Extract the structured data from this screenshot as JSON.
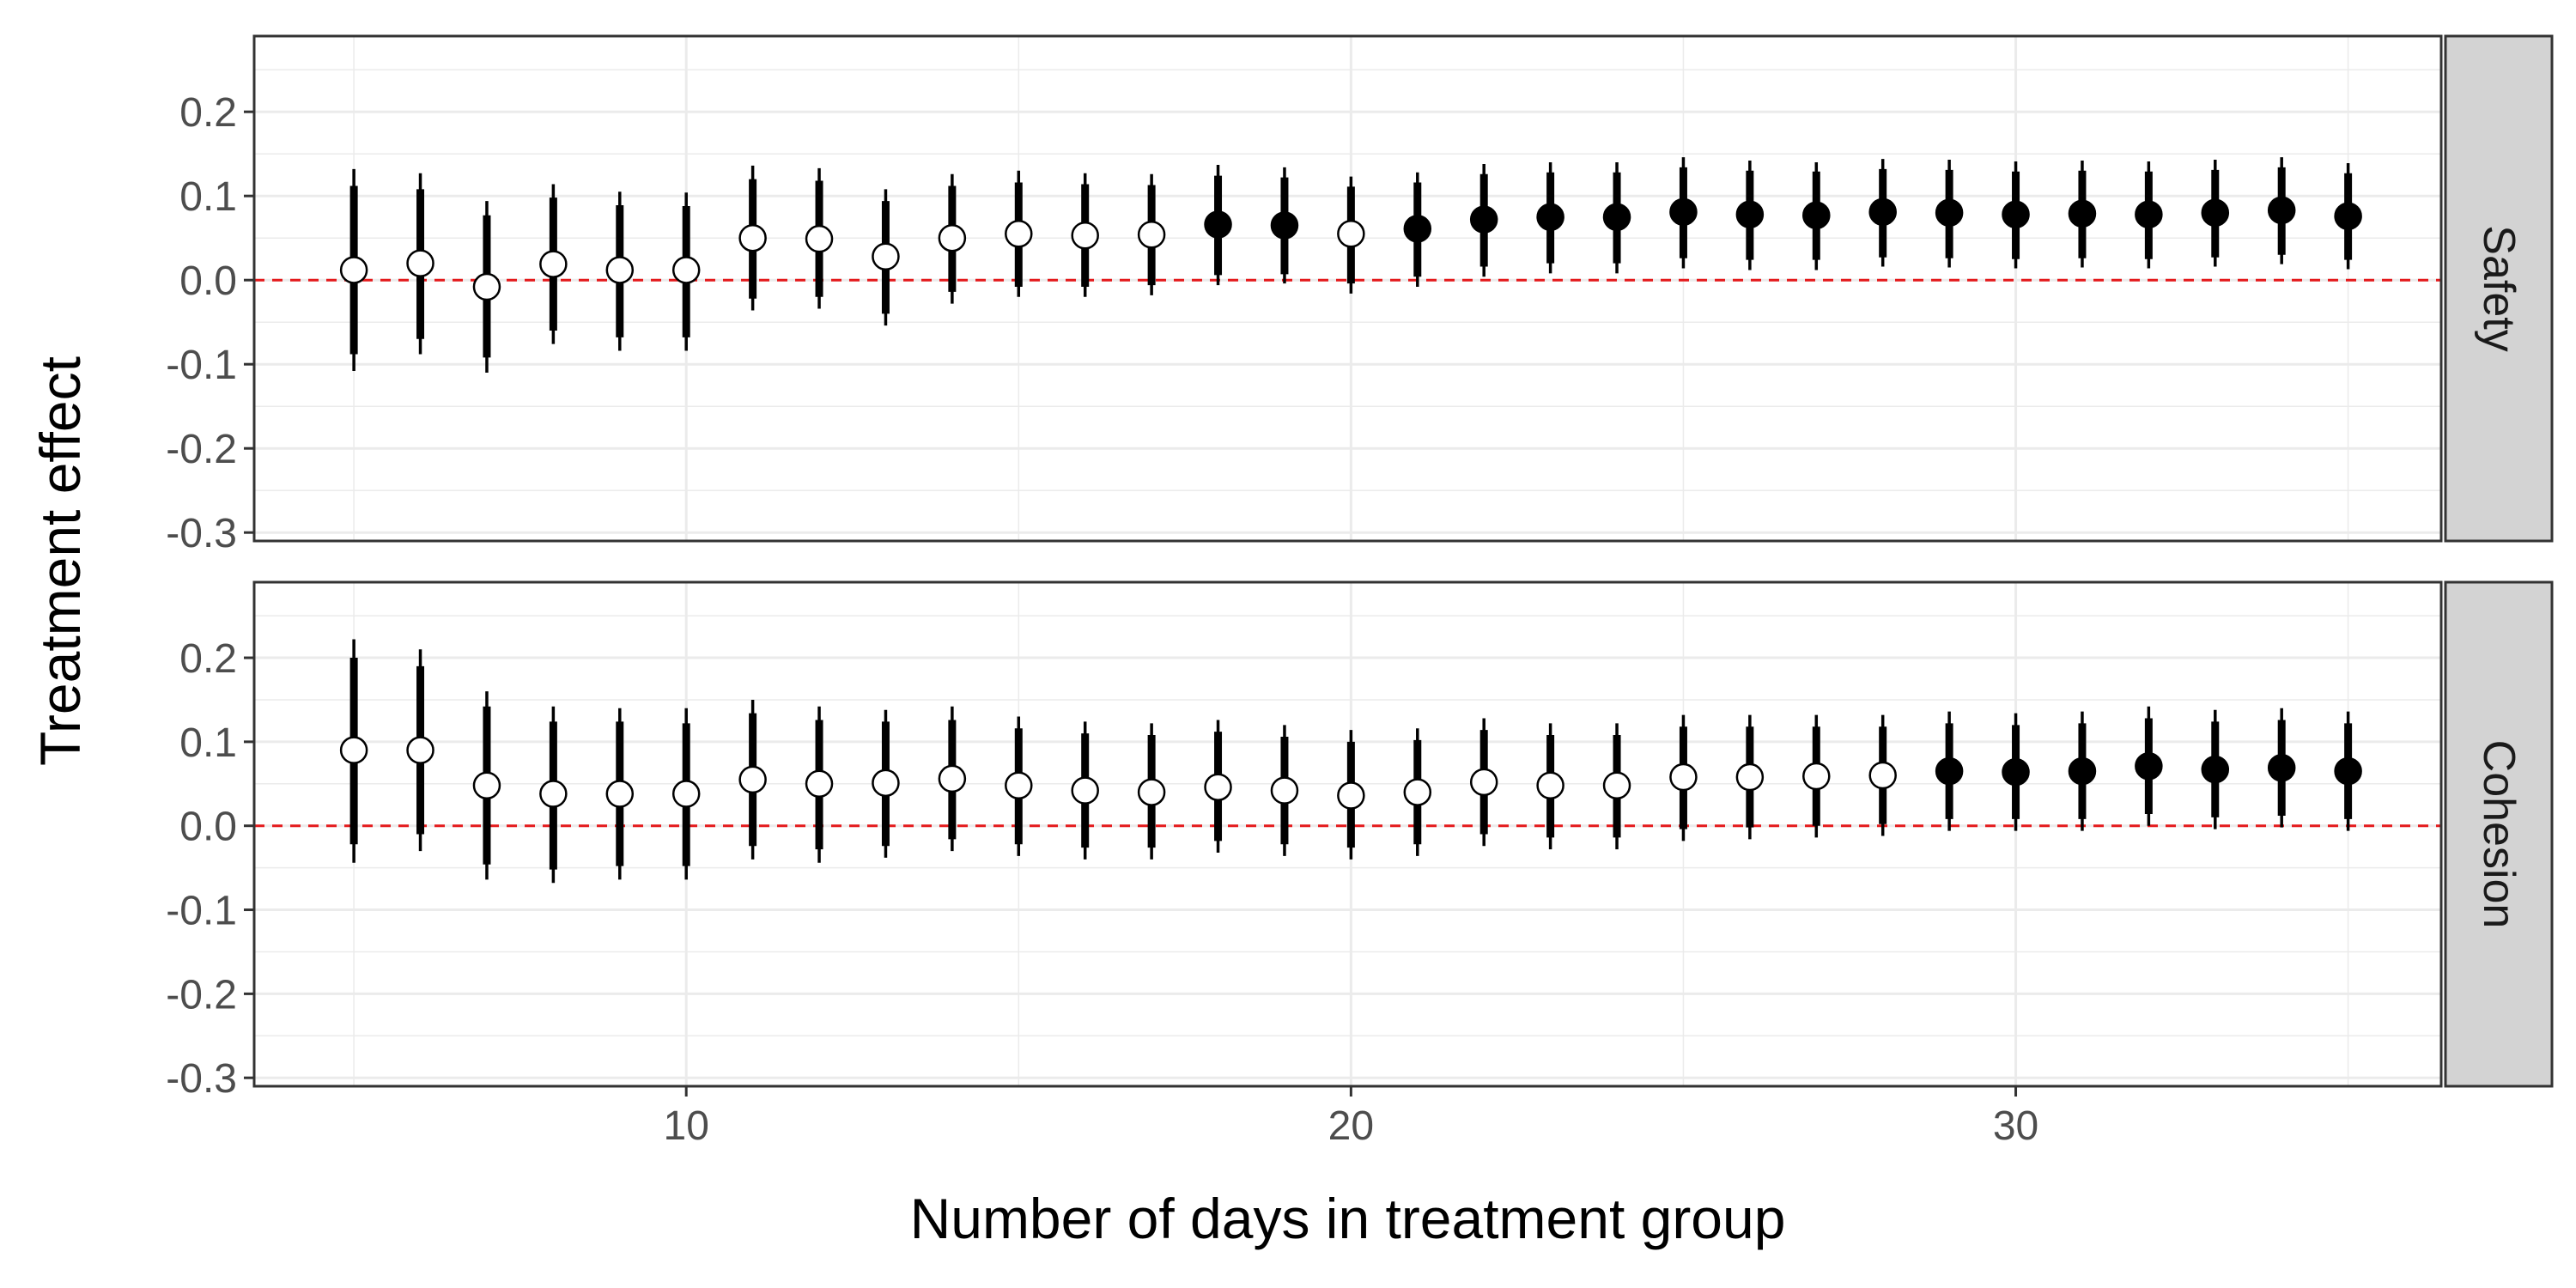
{
  "chart_data": {
    "type": "scatter",
    "xlabel": "Number of days in treatment group",
    "ylabel": "Treatment effect",
    "xlim": [
      3.5,
      36.4
    ],
    "ylim": [
      -0.31,
      0.29
    ],
    "x_ticks": [
      10,
      20,
      30
    ],
    "y_ticks": [
      -0.3,
      -0.2,
      -0.1,
      0.0,
      0.1,
      0.2
    ],
    "y_tick_labels": [
      "-0.3",
      "-0.2",
      "-0.1",
      "0.0",
      "0.1",
      "0.2"
    ],
    "x_tick_labels": [
      "10",
      "20",
      "30"
    ],
    "reference_line": {
      "y": 0,
      "color": "#e41a1c",
      "style": "dashed"
    },
    "grid": true,
    "colors": {
      "filled_point": "#000000",
      "open_point": "#ffffff",
      "strip": "#d3d3d3",
      "grid": "#ebebeb"
    },
    "panels": [
      {
        "strip": "Safety",
        "points": [
          {
            "x": 5,
            "y": 0.012,
            "inner": [
              -0.088,
              0.112
            ],
            "outer": [
              -0.108,
              0.132
            ],
            "filled": false
          },
          {
            "x": 6,
            "y": 0.02,
            "inner": [
              -0.07,
              0.108
            ],
            "outer": [
              -0.088,
              0.127
            ],
            "filled": false
          },
          {
            "x": 7,
            "y": -0.008,
            "inner": [
              -0.092,
              0.077
            ],
            "outer": [
              -0.11,
              0.094
            ],
            "filled": false
          },
          {
            "x": 8,
            "y": 0.019,
            "inner": [
              -0.06,
              0.098
            ],
            "outer": [
              -0.076,
              0.114
            ],
            "filled": false
          },
          {
            "x": 9,
            "y": 0.012,
            "inner": [
              -0.068,
              0.089
            ],
            "outer": [
              -0.084,
              0.105
            ],
            "filled": false
          },
          {
            "x": 10,
            "y": 0.012,
            "inner": [
              -0.068,
              0.088
            ],
            "outer": [
              -0.084,
              0.104
            ],
            "filled": false
          },
          {
            "x": 11,
            "y": 0.05,
            "inner": [
              -0.022,
              0.12
            ],
            "outer": [
              -0.036,
              0.136
            ],
            "filled": false
          },
          {
            "x": 12,
            "y": 0.049,
            "inner": [
              -0.02,
              0.118
            ],
            "outer": [
              -0.034,
              0.133
            ],
            "filled": false
          },
          {
            "x": 13,
            "y": 0.028,
            "inner": [
              -0.04,
              0.094
            ],
            "outer": [
              -0.054,
              0.108
            ],
            "filled": false
          },
          {
            "x": 14,
            "y": 0.05,
            "inner": [
              -0.014,
              0.112
            ],
            "outer": [
              -0.028,
              0.126
            ],
            "filled": false
          },
          {
            "x": 15,
            "y": 0.055,
            "inner": [
              -0.008,
              0.116
            ],
            "outer": [
              -0.02,
              0.13
            ],
            "filled": false
          },
          {
            "x": 16,
            "y": 0.053,
            "inner": [
              -0.008,
              0.114
            ],
            "outer": [
              -0.02,
              0.127
            ],
            "filled": false
          },
          {
            "x": 17,
            "y": 0.054,
            "inner": [
              -0.006,
              0.113
            ],
            "outer": [
              -0.018,
              0.126
            ],
            "filled": false
          },
          {
            "x": 18,
            "y": 0.066,
            "inner": [
              0.006,
              0.124
            ],
            "outer": [
              -0.006,
              0.137
            ],
            "filled": true
          },
          {
            "x": 19,
            "y": 0.065,
            "inner": [
              0.007,
              0.122
            ],
            "outer": [
              -0.004,
              0.134
            ],
            "filled": true
          },
          {
            "x": 20,
            "y": 0.055,
            "inner": [
              -0.004,
              0.111
            ],
            "outer": [
              -0.016,
              0.123
            ],
            "filled": false
          },
          {
            "x": 21,
            "y": 0.061,
            "inner": [
              0.004,
              0.116
            ],
            "outer": [
              -0.008,
              0.128
            ],
            "filled": true
          },
          {
            "x": 22,
            "y": 0.072,
            "inner": [
              0.016,
              0.126
            ],
            "outer": [
              0.004,
              0.138
            ],
            "filled": true
          },
          {
            "x": 23,
            "y": 0.075,
            "inner": [
              0.02,
              0.128
            ],
            "outer": [
              0.008,
              0.14
            ],
            "filled": true
          },
          {
            "x": 24,
            "y": 0.075,
            "inner": [
              0.02,
              0.128
            ],
            "outer": [
              0.008,
              0.14
            ],
            "filled": true
          },
          {
            "x": 25,
            "y": 0.081,
            "inner": [
              0.026,
              0.134
            ],
            "outer": [
              0.014,
              0.146
            ],
            "filled": true
          },
          {
            "x": 26,
            "y": 0.078,
            "inner": [
              0.024,
              0.13
            ],
            "outer": [
              0.012,
              0.142
            ],
            "filled": true
          },
          {
            "x": 27,
            "y": 0.077,
            "inner": [
              0.024,
              0.129
            ],
            "outer": [
              0.012,
              0.14
            ],
            "filled": true
          },
          {
            "x": 28,
            "y": 0.081,
            "inner": [
              0.027,
              0.132
            ],
            "outer": [
              0.016,
              0.144
            ],
            "filled": true
          },
          {
            "x": 29,
            "y": 0.08,
            "inner": [
              0.026,
              0.131
            ],
            "outer": [
              0.015,
              0.143
            ],
            "filled": true
          },
          {
            "x": 30,
            "y": 0.078,
            "inner": [
              0.025,
              0.129
            ],
            "outer": [
              0.014,
              0.141
            ],
            "filled": true
          },
          {
            "x": 31,
            "y": 0.079,
            "inner": [
              0.026,
              0.13
            ],
            "outer": [
              0.015,
              0.142
            ],
            "filled": true
          },
          {
            "x": 32,
            "y": 0.078,
            "inner": [
              0.025,
              0.129
            ],
            "outer": [
              0.014,
              0.141
            ],
            "filled": true
          },
          {
            "x": 33,
            "y": 0.08,
            "inner": [
              0.027,
              0.131
            ],
            "outer": [
              0.016,
              0.143
            ],
            "filled": true
          },
          {
            "x": 34,
            "y": 0.083,
            "inner": [
              0.03,
              0.134
            ],
            "outer": [
              0.019,
              0.146
            ],
            "filled": true
          },
          {
            "x": 35,
            "y": 0.076,
            "inner": [
              0.024,
              0.127
            ],
            "outer": [
              0.013,
              0.139
            ],
            "filled": true
          }
        ]
      },
      {
        "strip": "Cohesion",
        "points": [
          {
            "x": 5,
            "y": 0.09,
            "inner": [
              -0.022,
              0.2
            ],
            "outer": [
              -0.044,
              0.222
            ],
            "filled": false
          },
          {
            "x": 6,
            "y": 0.09,
            "inner": [
              -0.01,
              0.19
            ],
            "outer": [
              -0.03,
              0.21
            ],
            "filled": false
          },
          {
            "x": 7,
            "y": 0.048,
            "inner": [
              -0.046,
              0.142
            ],
            "outer": [
              -0.064,
              0.16
            ],
            "filled": false
          },
          {
            "x": 8,
            "y": 0.038,
            "inner": [
              -0.052,
              0.124
            ],
            "outer": [
              -0.068,
              0.142
            ],
            "filled": false
          },
          {
            "x": 9,
            "y": 0.038,
            "inner": [
              -0.048,
              0.124
            ],
            "outer": [
              -0.064,
              0.14
            ],
            "filled": false
          },
          {
            "x": 10,
            "y": 0.038,
            "inner": [
              -0.048,
              0.122
            ],
            "outer": [
              -0.064,
              0.14
            ],
            "filled": false
          },
          {
            "x": 11,
            "y": 0.055,
            "inner": [
              -0.024,
              0.134
            ],
            "outer": [
              -0.04,
              0.15
            ],
            "filled": false
          },
          {
            "x": 12,
            "y": 0.05,
            "inner": [
              -0.028,
              0.126
            ],
            "outer": [
              -0.044,
              0.142
            ],
            "filled": false
          },
          {
            "x": 13,
            "y": 0.051,
            "inner": [
              -0.024,
              0.124
            ],
            "outer": [
              -0.038,
              0.138
            ],
            "filled": false
          },
          {
            "x": 14,
            "y": 0.056,
            "inner": [
              -0.016,
              0.126
            ],
            "outer": [
              -0.03,
              0.142
            ],
            "filled": false
          },
          {
            "x": 15,
            "y": 0.048,
            "inner": [
              -0.022,
              0.116
            ],
            "outer": [
              -0.036,
              0.13
            ],
            "filled": false
          },
          {
            "x": 16,
            "y": 0.042,
            "inner": [
              -0.026,
              0.11
            ],
            "outer": [
              -0.04,
              0.124
            ],
            "filled": false
          },
          {
            "x": 17,
            "y": 0.04,
            "inner": [
              -0.026,
              0.108
            ],
            "outer": [
              -0.04,
              0.122
            ],
            "filled": false
          },
          {
            "x": 18,
            "y": 0.046,
            "inner": [
              -0.018,
              0.112
            ],
            "outer": [
              -0.032,
              0.126
            ],
            "filled": false
          },
          {
            "x": 19,
            "y": 0.042,
            "inner": [
              -0.022,
              0.106
            ],
            "outer": [
              -0.036,
              0.12
            ],
            "filled": false
          },
          {
            "x": 20,
            "y": 0.036,
            "inner": [
              -0.026,
              0.1
            ],
            "outer": [
              -0.04,
              0.114
            ],
            "filled": false
          },
          {
            "x": 21,
            "y": 0.04,
            "inner": [
              -0.022,
              0.102
            ],
            "outer": [
              -0.036,
              0.116
            ],
            "filled": false
          },
          {
            "x": 22,
            "y": 0.052,
            "inner": [
              -0.01,
              0.114
            ],
            "outer": [
              -0.024,
              0.128
            ],
            "filled": false
          },
          {
            "x": 23,
            "y": 0.048,
            "inner": [
              -0.014,
              0.108
            ],
            "outer": [
              -0.028,
              0.122
            ],
            "filled": false
          },
          {
            "x": 24,
            "y": 0.048,
            "inner": [
              -0.014,
              0.108
            ],
            "outer": [
              -0.028,
              0.122
            ],
            "filled": false
          },
          {
            "x": 25,
            "y": 0.058,
            "inner": [
              -0.004,
              0.118
            ],
            "outer": [
              -0.018,
              0.132
            ],
            "filled": false
          },
          {
            "x": 26,
            "y": 0.058,
            "inner": [
              -0.002,
              0.118
            ],
            "outer": [
              -0.016,
              0.132
            ],
            "filled": false
          },
          {
            "x": 27,
            "y": 0.059,
            "inner": [
              0.0,
              0.118
            ],
            "outer": [
              -0.014,
              0.132
            ],
            "filled": false
          },
          {
            "x": 28,
            "y": 0.06,
            "inner": [
              0.002,
              0.118
            ],
            "outer": [
              -0.012,
              0.132
            ],
            "filled": false
          },
          {
            "x": 29,
            "y": 0.065,
            "inner": [
              0.008,
              0.122
            ],
            "outer": [
              -0.006,
              0.136
            ],
            "filled": true
          },
          {
            "x": 30,
            "y": 0.064,
            "inner": [
              0.008,
              0.12
            ],
            "outer": [
              -0.006,
              0.134
            ],
            "filled": true
          },
          {
            "x": 31,
            "y": 0.065,
            "inner": [
              0.008,
              0.122
            ],
            "outer": [
              -0.006,
              0.136
            ],
            "filled": true
          },
          {
            "x": 32,
            "y": 0.071,
            "inner": [
              0.014,
              0.128
            ],
            "outer": [
              0.0,
              0.142
            ],
            "filled": true
          },
          {
            "x": 33,
            "y": 0.067,
            "inner": [
              0.01,
              0.124
            ],
            "outer": [
              -0.004,
              0.138
            ],
            "filled": true
          },
          {
            "x": 34,
            "y": 0.069,
            "inner": [
              0.012,
              0.126
            ],
            "outer": [
              -0.002,
              0.14
            ],
            "filled": true
          },
          {
            "x": 35,
            "y": 0.065,
            "inner": [
              0.008,
              0.122
            ],
            "outer": [
              -0.006,
              0.136
            ],
            "filled": true
          }
        ]
      }
    ]
  }
}
